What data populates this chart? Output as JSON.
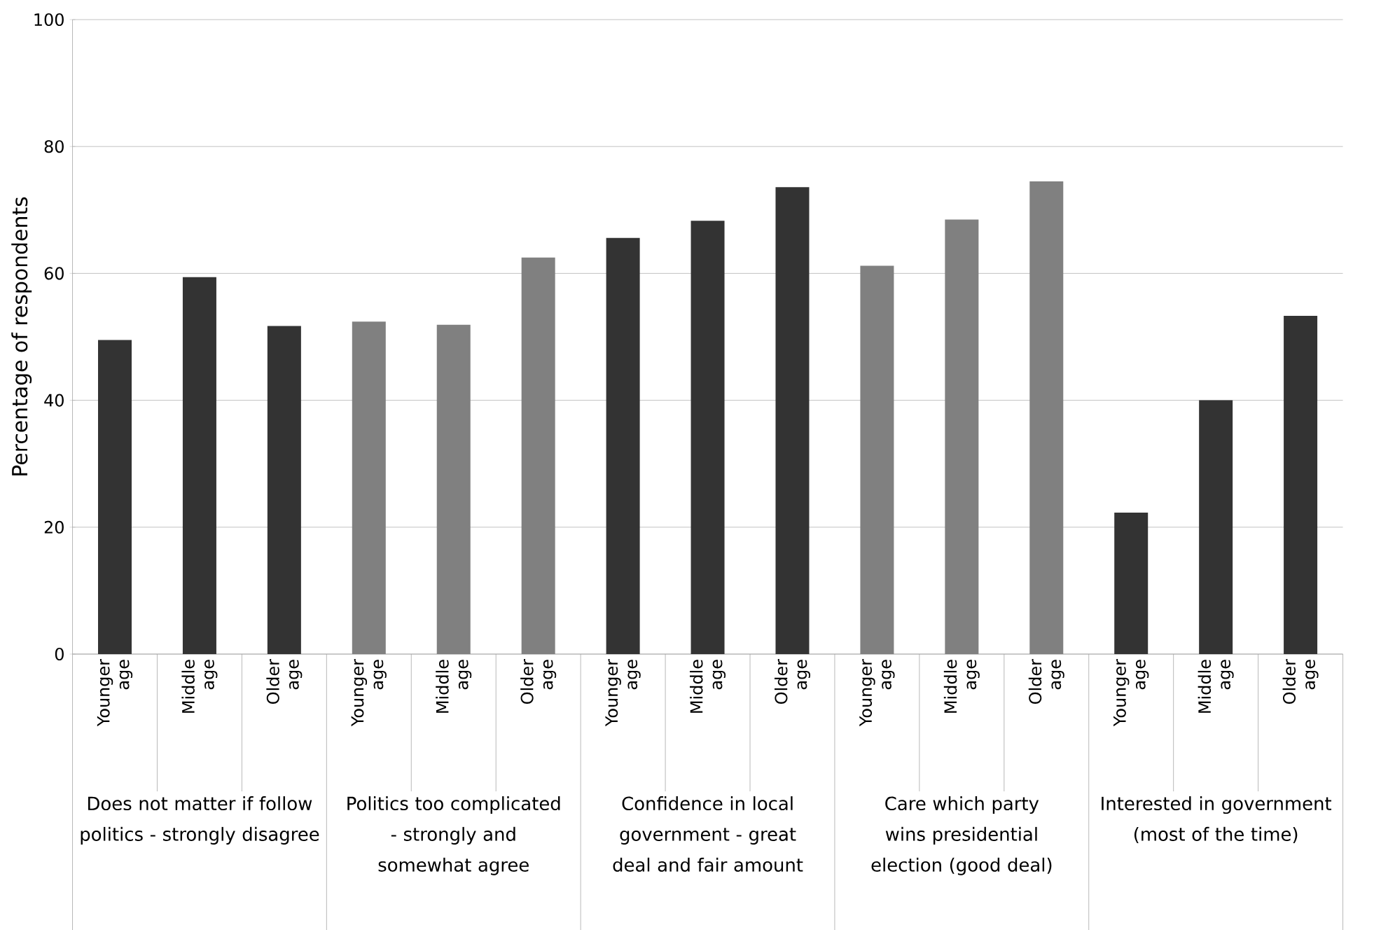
{
  "chart_data": {
    "type": "bar",
    "ylabel": "Percentage of respondents",
    "categories": [
      "Younger age",
      "Middle age",
      "Older age",
      "Younger age",
      "Middle age",
      "Older age",
      "Younger age",
      "Middle age",
      "Older age",
      "Younger age",
      "Middle age",
      "Older age",
      "Younger age",
      "Middle age",
      "Older age"
    ],
    "values": [
      49.5,
      59.4,
      51.7,
      52.4,
      51.9,
      62.5,
      65.6,
      68.3,
      73.6,
      61.2,
      68.5,
      74.5,
      22.3,
      40,
      53.3
    ],
    "colors": [
      "#333333",
      "#333333",
      "#333333",
      "#808080",
      "#808080",
      "#808080",
      "#333333",
      "#333333",
      "#333333",
      "#808080",
      "#808080",
      "#808080",
      "#333333",
      "#333333",
      "#333333"
    ],
    "annotations": [
      "Does not matter if follow politics - strongly disagree",
      "Politics too complicated - strongly and somewhat agree",
      "Confidence in local government - great deal and fair amount",
      "Care which party wins presidential election (good deal)",
      "Interested in government (most of the time)"
    ],
    "ylim": [
      0,
      100
    ],
    "yticks": [
      0,
      20,
      40,
      60,
      80,
      100
    ],
    "grid": "y"
  }
}
